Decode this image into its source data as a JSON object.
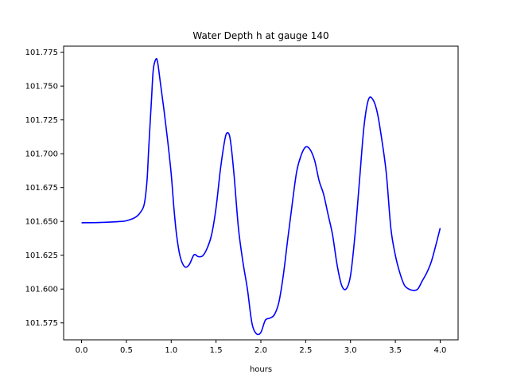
{
  "chart_data": {
    "type": "line",
    "title": "Water Depth h at gauge 140",
    "xlabel": "hours",
    "ylabel": "",
    "xlim": [
      -0.2,
      4.2
    ],
    "ylim": [
      101.5625,
      101.7795
    ],
    "xticks": [
      0.0,
      0.5,
      1.0,
      1.5,
      2.0,
      2.5,
      3.0,
      3.5,
      4.0
    ],
    "xtick_labels": [
      "0.0",
      "0.5",
      "1.0",
      "1.5",
      "2.0",
      "2.5",
      "3.0",
      "3.5",
      "4.0"
    ],
    "yticks": [
      101.575,
      101.6,
      101.625,
      101.65,
      101.675,
      101.7,
      101.725,
      101.75,
      101.775
    ],
    "ytick_labels": [
      "101.575",
      "101.600",
      "101.625",
      "101.650",
      "101.675",
      "101.700",
      "101.725",
      "101.750",
      "101.775"
    ],
    "grid": false,
    "color": "#0000ff",
    "series": [
      {
        "x": [
          0.0,
          0.2,
          0.4,
          0.5,
          0.6,
          0.66,
          0.7,
          0.73,
          0.75,
          0.78,
          0.8,
          0.83,
          0.85,
          0.88,
          0.92,
          0.96,
          1.0,
          1.03,
          1.06,
          1.1,
          1.15,
          1.2,
          1.25,
          1.28,
          1.3,
          1.35,
          1.4,
          1.45,
          1.5,
          1.55,
          1.6,
          1.63,
          1.66,
          1.7,
          1.75,
          1.8,
          1.85,
          1.9,
          1.95,
          2.0,
          2.05,
          2.1,
          2.15,
          2.2,
          2.25,
          2.3,
          2.35,
          2.4,
          2.45,
          2.5,
          2.55,
          2.6,
          2.65,
          2.7,
          2.75,
          2.8,
          2.85,
          2.9,
          2.95,
          3.0,
          3.05,
          3.1,
          3.15,
          3.2,
          3.25,
          3.3,
          3.35,
          3.4,
          3.45,
          3.5,
          3.55,
          3.6,
          3.65,
          3.7,
          3.75,
          3.8,
          3.85,
          3.9,
          3.95,
          4.0
        ],
        "y": [
          101.649,
          101.6492,
          101.6498,
          101.6505,
          101.653,
          101.657,
          101.663,
          101.68,
          101.705,
          101.74,
          101.762,
          101.77,
          101.767,
          101.752,
          101.732,
          101.71,
          101.685,
          101.66,
          101.64,
          101.624,
          101.6165,
          101.618,
          101.625,
          101.625,
          101.624,
          101.6245,
          101.63,
          101.64,
          101.66,
          101.689,
          101.711,
          101.7155,
          101.71,
          101.685,
          101.645,
          101.62,
          101.6,
          101.575,
          101.567,
          101.568,
          101.577,
          101.5785,
          101.581,
          101.59,
          101.61,
          101.637,
          101.663,
          101.687,
          101.699,
          101.705,
          101.703,
          101.695,
          101.68,
          101.67,
          101.655,
          101.64,
          101.618,
          101.603,
          101.6,
          101.61,
          101.64,
          101.68,
          101.72,
          101.74,
          101.74,
          101.73,
          101.71,
          101.685,
          101.645,
          101.625,
          101.612,
          101.603,
          101.6,
          101.599,
          101.6,
          101.606,
          101.612,
          101.62,
          101.632,
          101.645
        ]
      }
    ]
  }
}
